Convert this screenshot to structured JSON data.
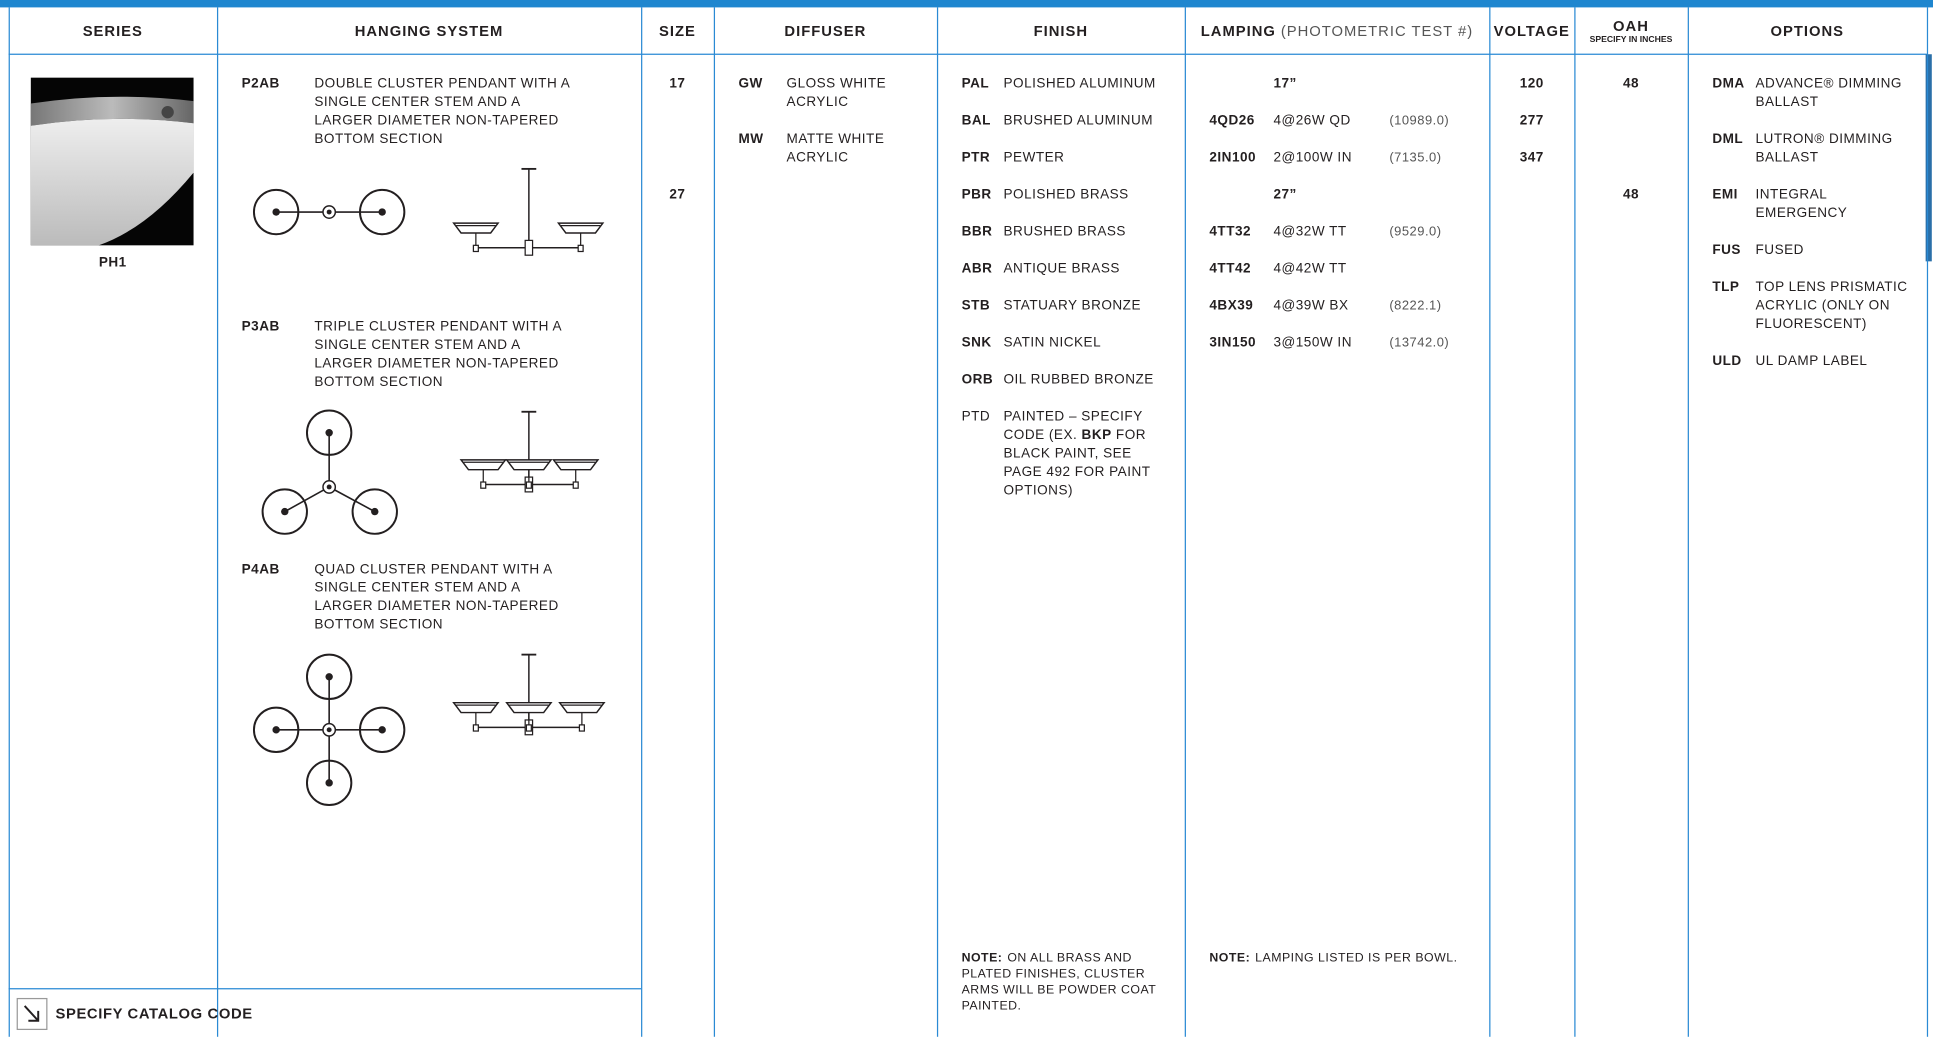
{
  "header": {
    "columns": [
      {
        "label": "SERIES"
      },
      {
        "label": "HANGING SYSTEM"
      },
      {
        "label": "SIZE"
      },
      {
        "label": "DIFFUSER"
      },
      {
        "label": "FINISH"
      },
      {
        "label": "LAMPING",
        "note": "(PHOTOMETRIC TEST #)"
      },
      {
        "label": "VOLTAGE"
      },
      {
        "label": "OAH",
        "note": "SPECIFY IN INCHES"
      },
      {
        "label": "OPTIONS"
      }
    ]
  },
  "series": {
    "code": "PH1"
  },
  "hanging_system": [
    {
      "code": "P2AB",
      "description": "DOUBLE CLUSTER PENDANT WITH A SINGLE CENTER STEM AND A LARGER DIAMETER NON-TAPERED BOTTOM SECTION"
    },
    {
      "code": "P3AB",
      "description": "TRIPLE CLUSTER PENDANT WITH A SINGLE CENTER STEM AND A LARGER DIAMETER NON-TAPERED BOTTOM SECTION"
    },
    {
      "code": "P4AB",
      "description": "QUAD CLUSTER PENDANT WITH A SINGLE CENTER STEM AND A LARGER DIAMETER NON-TAPERED BOTTOM SECTION"
    }
  ],
  "sizes": [
    {
      "size": 17,
      "lamping_heading": "17”",
      "oah": 48,
      "lamps": [
        {
          "code": "4QD26",
          "description": "4@26W QD",
          "test": "(10989.0)"
        },
        {
          "code": "2IN100",
          "description": "2@100W IN",
          "test": "(7135.0)"
        }
      ]
    },
    {
      "size": 27,
      "lamping_heading": "27”",
      "oah": 48,
      "lamps": [
        {
          "code": "4TT32",
          "description": "4@32W TT",
          "test": "(9529.0)"
        },
        {
          "code": "4TT42",
          "description": "4@42W TT"
        },
        {
          "code": "4BX39",
          "description": "4@39W BX",
          "test": "(8222.1)"
        },
        {
          "code": "3IN150",
          "description": "3@150W IN",
          "test": "(13742.0)"
        }
      ]
    }
  ],
  "diffusers": [
    {
      "code": "GW",
      "label": "GLOSS WHITE ACRYLIC"
    },
    {
      "code": "MW",
      "label": "MATTE WHITE ACRYLIC"
    }
  ],
  "finishes": [
    {
      "code": "PAL",
      "label": "POLISHED ALUMINUM"
    },
    {
      "code": "BAL",
      "label": "BRUSHED ALUMINUM"
    },
    {
      "code": "PTR",
      "label": "PEWTER"
    },
    {
      "code": "PBR",
      "label": "POLISHED BRASS"
    },
    {
      "code": "BBR",
      "label": "BRUSHED BRASS"
    },
    {
      "code": "ABR",
      "label": "ANTIQUE BRASS"
    },
    {
      "code": "STB",
      "label": "STATUARY BRONZE"
    },
    {
      "code": "SNK",
      "label": "SATIN NICKEL"
    },
    {
      "code": "ORB",
      "label": "OIL RUBBED BRONZE"
    },
    {
      "code": "PTD",
      "label_parts": [
        "PAINTED – SPECIFY CODE (EX. ",
        "BKP",
        " FOR BLACK PAINT, SEE PAGE 492 FOR PAINT OPTIONS)"
      ]
    }
  ],
  "finish_note": {
    "label": "NOTE:",
    "text": "ON ALL BRASS AND PLATED FINISHES, CLUSTER ARMS WILL BE POWDER COAT PAINTED."
  },
  "voltages": [
    120,
    277,
    347
  ],
  "lamping_note": {
    "label": "NOTE:",
    "text": "LAMPING LISTED IS PER BOWL."
  },
  "options": [
    {
      "code": "DMA",
      "label": "ADVANCE® DIMMING BALLAST"
    },
    {
      "code": "DML",
      "label": "LUTRON® DIMMING BALLAST"
    },
    {
      "code": "EMI",
      "label": "INTEGRAL EMERGENCY"
    },
    {
      "code": "FUS",
      "label": "FUSED"
    },
    {
      "code": "TLP",
      "label": "TOP LENS PRISMATIC ACRYLIC (ONLY ON FLUORESCENT)"
    },
    {
      "code": "ULD",
      "label": "UL DAMP LABEL"
    }
  ],
  "footer": {
    "label": "SPECIFY CATALOG CODE"
  }
}
